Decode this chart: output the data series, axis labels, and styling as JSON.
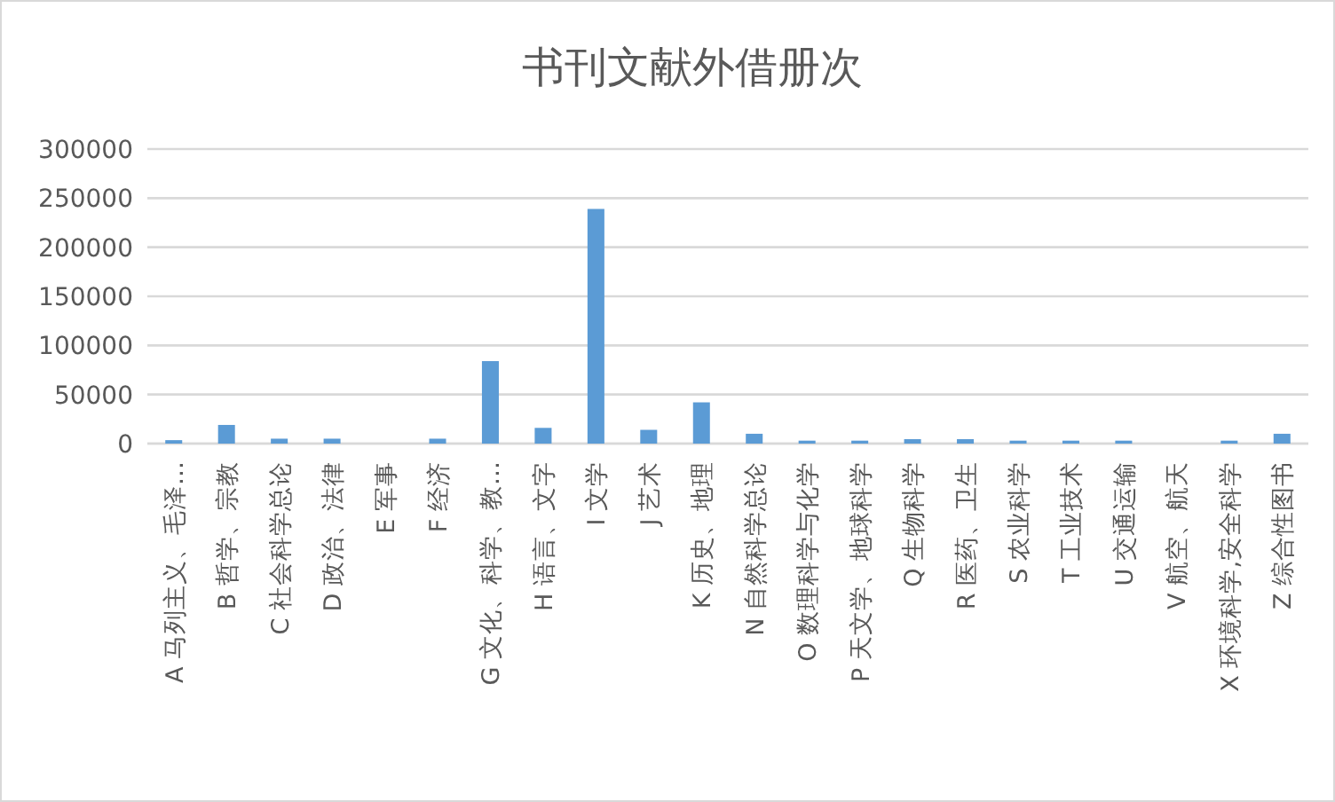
{
  "chart_data": {
    "type": "bar",
    "title": "书刊文献外借册次",
    "categories": [
      "A 马列主义、毛泽…",
      "B 哲学、宗教",
      "C 社会科学总论",
      "D 政治、法律",
      "E 军事",
      "F 经济",
      "G 文化、科学、教…",
      "H 语言、文字",
      "I 文学",
      "J 艺术",
      "K 历史、地理",
      "N 自然科学总论",
      "O 数理科学与化学",
      "P 天文学、地球科学",
      "Q 生物科学",
      "R 医药、卫生",
      "S 农业科学",
      "T 工业技术",
      "U 交通运输",
      "V 航空、航天",
      "X 环境科学,安全科学",
      "Z 综合性图书"
    ],
    "values": [
      3500,
      19000,
      5000,
      5000,
      0,
      5000,
      84000,
      16000,
      239000,
      14000,
      42000,
      10000,
      3000,
      3000,
      4500,
      4500,
      3000,
      3000,
      3000,
      0,
      3000,
      10000
    ],
    "color": "#5b9bd5",
    "ylim": [
      0,
      300000
    ],
    "yticks": [
      0,
      50000,
      100000,
      150000,
      200000,
      250000,
      300000
    ],
    "grid": "y"
  }
}
